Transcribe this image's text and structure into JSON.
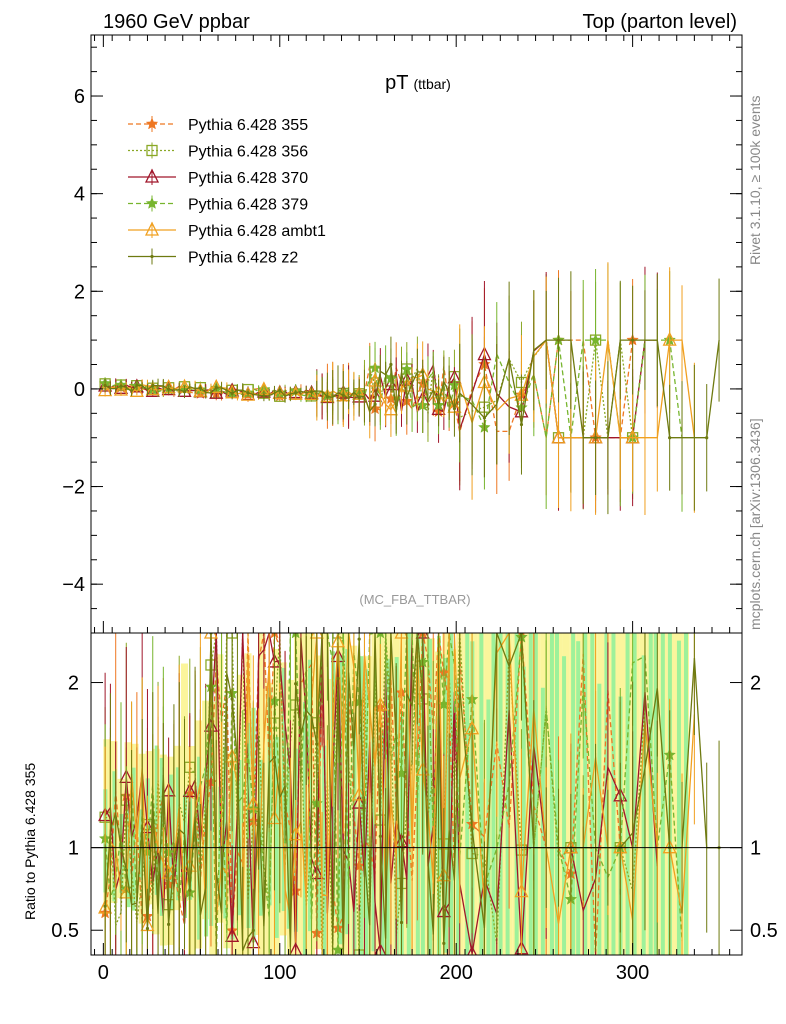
{
  "header": {
    "left": "1960 GeV ppbar",
    "right": "Top (parton level)"
  },
  "side": {
    "rivet": "Rivet 3.1.10, ≥ 100k events",
    "mcplots": "mcplots.cern.ch [arXiv:1306.3436]"
  },
  "chart_data": [
    {
      "type": "line",
      "title": "pT",
      "title_sub": "(ttbar)",
      "analysis": "(MC_FBA_TTBAR)",
      "xlabel": "",
      "ylabel": "",
      "xlim": [
        -7,
        362
      ],
      "ylim": [
        -5.0,
        7.25
      ],
      "yticks": [
        -4,
        -2,
        0,
        2,
        4,
        6
      ],
      "ytick_labels": [
        "−4",
        "−2",
        "0",
        "2",
        "4",
        "6"
      ],
      "xticks": [
        0,
        100,
        200,
        300
      ],
      "xtick_labels": [
        "0",
        "100",
        "200",
        "300"
      ],
      "legend_position": "top-left",
      "series": [
        {
          "name": "Pythia 6.428 355",
          "color": "#ee7722",
          "dash": "5,3",
          "marker": "star",
          "seed": 11
        },
        {
          "name": "Pythia 6.428 356",
          "color": "#8aa826",
          "dash": "2,2",
          "marker": "square",
          "seed": 23
        },
        {
          "name": "Pythia 6.428 370",
          "color": "#a0162a",
          "dash": "",
          "marker": "triangle",
          "seed": 37
        },
        {
          "name": "Pythia 6.428 379",
          "color": "#77b52e",
          "dash": "5,3",
          "marker": "star",
          "seed": 41
        },
        {
          "name": "Pythia 6.428 ambt1",
          "color": "#f0a020",
          "dash": "",
          "marker": "triangle",
          "seed": 53
        },
        {
          "name": "Pythia 6.428 z2",
          "color": "#6e7a10",
          "dash": "",
          "marker": "dot",
          "seed": 67
        }
      ]
    },
    {
      "type": "line",
      "title": "",
      "ylabel": "Ratio to Pythia 6.428 355",
      "xlim": [
        -7,
        362
      ],
      "ylim": [
        0.35,
        2.3
      ],
      "yticks": [
        0.5,
        1,
        2
      ],
      "ytick_labels": [
        "0.5",
        "1",
        "2"
      ],
      "reference_line": 1,
      "bands": [
        "yellow",
        "green"
      ]
    }
  ]
}
